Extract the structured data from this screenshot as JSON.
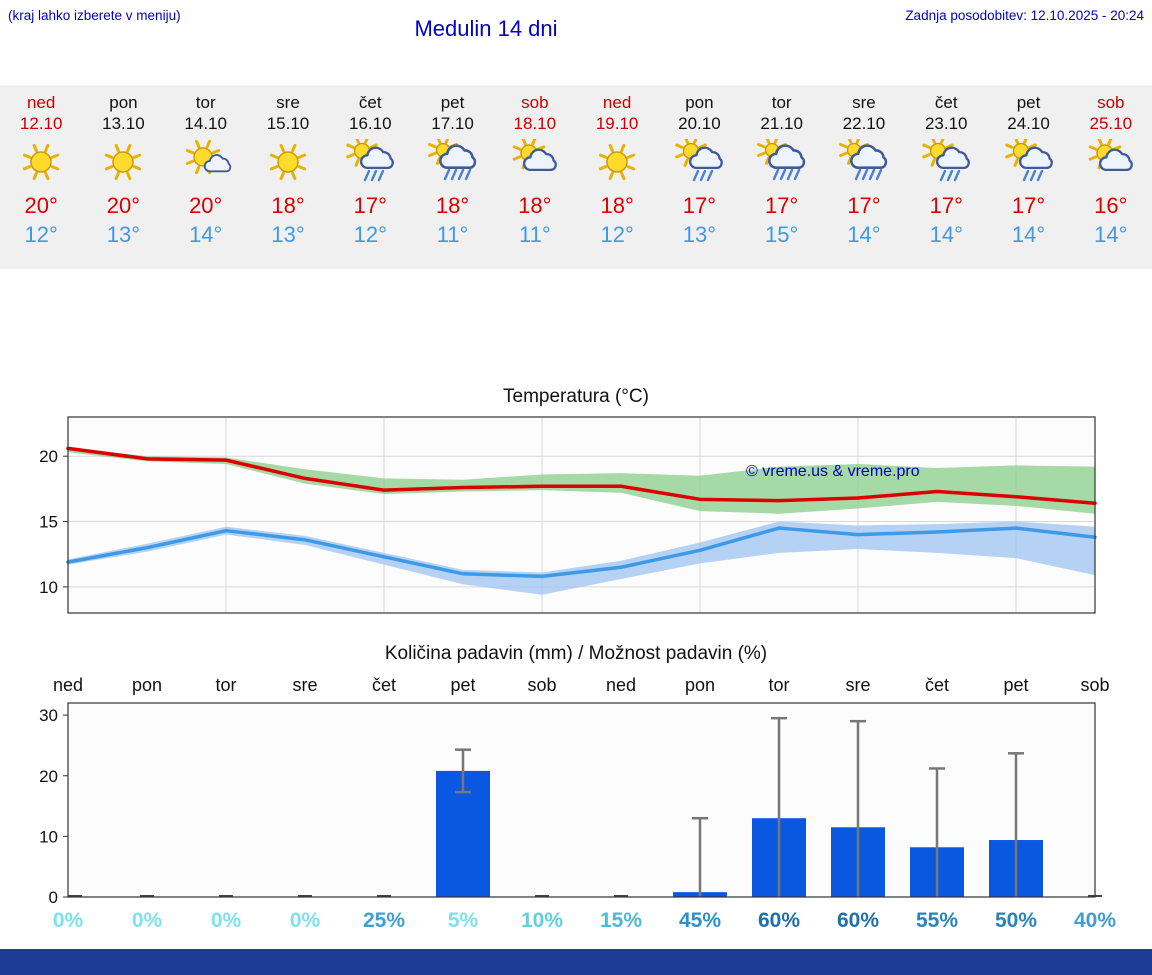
{
  "header": {
    "note": "(kraj lahko izberete v meniju)",
    "title": "Medulin 14 dni",
    "updated": "Zadnja posodobitev: 12.10.2025 - 20:24"
  },
  "colors": {
    "link_blue": "#0000cc",
    "day_red": "#cc0000",
    "day_black": "#111111",
    "high_red": "#dd0000",
    "low_blue": "#3d9ae8",
    "strip_bg": "#f0f0f0",
    "bar_blue": "#0a58e0",
    "bottom_bar": "#1e3c96",
    "copyright_blue": "#0000bb"
  },
  "forecast_days": [
    {
      "day": "ned",
      "date": "12.10",
      "red": true,
      "icon": "sun",
      "high": "20°",
      "low": "12°"
    },
    {
      "day": "pon",
      "date": "13.10",
      "red": false,
      "icon": "sun",
      "high": "20°",
      "low": "13°"
    },
    {
      "day": "tor",
      "date": "14.10",
      "red": false,
      "icon": "sun-cloud",
      "high": "20°",
      "low": "14°"
    },
    {
      "day": "sre",
      "date": "15.10",
      "red": false,
      "icon": "sun",
      "high": "18°",
      "low": "13°"
    },
    {
      "day": "čet",
      "date": "16.10",
      "red": false,
      "icon": "sun-rain",
      "high": "17°",
      "low": "12°"
    },
    {
      "day": "pet",
      "date": "17.10",
      "red": false,
      "icon": "rain",
      "high": "18°",
      "low": "11°"
    },
    {
      "day": "sob",
      "date": "18.10",
      "red": true,
      "icon": "cloud-sun",
      "high": "18°",
      "low": "11°"
    },
    {
      "day": "ned",
      "date": "19.10",
      "red": true,
      "icon": "sun",
      "high": "18°",
      "low": "12°"
    },
    {
      "day": "pon",
      "date": "20.10",
      "red": false,
      "icon": "sun-rain",
      "high": "17°",
      "low": "13°"
    },
    {
      "day": "tor",
      "date": "21.10",
      "red": false,
      "icon": "rain",
      "high": "17°",
      "low": "15°"
    },
    {
      "day": "sre",
      "date": "22.10",
      "red": false,
      "icon": "rain",
      "high": "17°",
      "low": "14°"
    },
    {
      "day": "čet",
      "date": "23.10",
      "red": false,
      "icon": "sun-rain",
      "high": "17°",
      "low": "14°"
    },
    {
      "day": "pet",
      "date": "24.10",
      "red": false,
      "icon": "sun-rain",
      "high": "17°",
      "low": "14°"
    },
    {
      "day": "sob",
      "date": "25.10",
      "red": true,
      "icon": "cloud-sun",
      "high": "16°",
      "low": "14°"
    }
  ],
  "chart_data": [
    {
      "type": "line",
      "title": "Temperatura (°C)",
      "x": [
        "ned",
        "pon",
        "tor",
        "sre",
        "čet",
        "pet",
        "sob",
        "ned",
        "pon",
        "tor",
        "sre",
        "čet",
        "pet",
        "sob"
      ],
      "ylim": [
        8,
        23
      ],
      "yticks": [
        10,
        15,
        20
      ],
      "grid": true,
      "series": [
        {
          "name": "max-temp",
          "color": "#dd0000",
          "band_color": "#8ed08e",
          "values": [
            20.6,
            19.8,
            19.7,
            18.3,
            17.4,
            17.6,
            17.7,
            17.7,
            16.7,
            16.6,
            16.8,
            17.3,
            16.9,
            16.4
          ],
          "band_upper": [
            20.7,
            20.0,
            19.9,
            19.0,
            18.3,
            18.2,
            18.6,
            18.7,
            18.5,
            19.2,
            19.4,
            19.1,
            19.3,
            19.2
          ],
          "band_lower": [
            20.3,
            19.6,
            19.4,
            17.9,
            17.1,
            17.3,
            17.4,
            17.2,
            15.8,
            15.6,
            16.0,
            16.5,
            16.2,
            15.6
          ]
        },
        {
          "name": "min-temp",
          "color": "#3d9ae8",
          "band_color": "#a3c6f0",
          "values": [
            11.9,
            13.0,
            14.3,
            13.6,
            12.3,
            11.0,
            10.8,
            11.5,
            12.8,
            14.5,
            14.0,
            14.2,
            14.5,
            13.8
          ],
          "band_upper": [
            12.1,
            13.3,
            14.6,
            13.9,
            12.6,
            11.3,
            11.1,
            12.0,
            13.4,
            15.0,
            14.7,
            14.8,
            15.0,
            14.6
          ],
          "band_lower": [
            11.7,
            12.7,
            14.0,
            13.2,
            11.7,
            10.2,
            9.4,
            10.6,
            11.8,
            12.6,
            12.9,
            12.6,
            12.2,
            10.9
          ]
        }
      ],
      "annotation": "© vreme.us & vreme.pro"
    },
    {
      "type": "bar",
      "title": "Količina padavin (mm) / Možnost padavin (%)",
      "categories": [
        "ned",
        "pon",
        "tor",
        "sre",
        "čet",
        "pet",
        "sob",
        "ned",
        "pon",
        "tor",
        "sre",
        "čet",
        "pet",
        "sob"
      ],
      "values": [
        0,
        0,
        0,
        0,
        0,
        20.8,
        0,
        0,
        0.8,
        13.0,
        11.5,
        8.2,
        9.4,
        0
      ],
      "error_low": [
        null,
        null,
        null,
        null,
        null,
        17.3,
        null,
        null,
        0,
        0,
        0,
        0,
        0,
        null
      ],
      "error_high": [
        null,
        null,
        null,
        null,
        null,
        24.3,
        null,
        null,
        13.0,
        29.5,
        29.0,
        21.2,
        23.7,
        null
      ],
      "ylim": [
        0,
        32
      ],
      "yticks": [
        0,
        10,
        20,
        30
      ],
      "percent_labels": [
        "0%",
        "0%",
        "0%",
        "0%",
        "25%",
        "5%",
        "10%",
        "15%",
        "45%",
        "60%",
        "60%",
        "55%",
        "50%",
        "40%"
      ],
      "percent_colors": [
        "#7de2ec",
        "#7de2ec",
        "#7de2ec",
        "#7de2ec",
        "#3f9fd0",
        "#7de2ec",
        "#63cfe0",
        "#4db8d8",
        "#3090c4",
        "#1f6fa8",
        "#1f6fa8",
        "#2a84b8",
        "#2a84b8",
        "#3f9fd0"
      ]
    }
  ]
}
